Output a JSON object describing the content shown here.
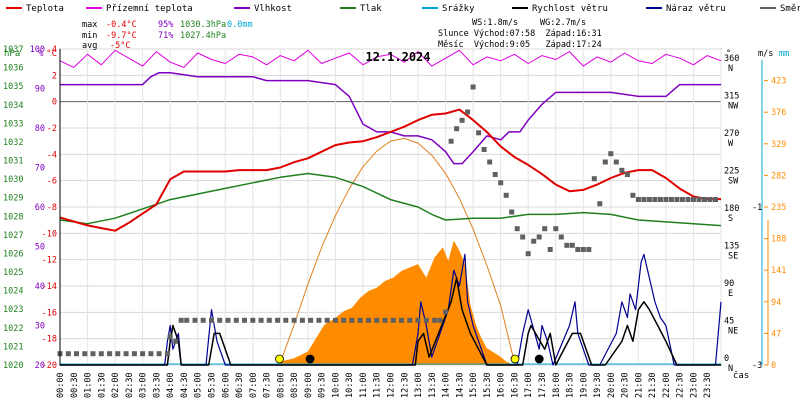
{
  "legend": [
    {
      "label": "Teplota",
      "color": "#e00000"
    },
    {
      "label": "Přízemní teplota",
      "color": "#e000e0"
    },
    {
      "label": "Vlhkost",
      "color": "#8000c0"
    },
    {
      "label": "Tlak",
      "color": "#208020"
    },
    {
      "label": "Srážky",
      "color": "#00a8d8"
    },
    {
      "label": "Rychlost větru",
      "color": "#000000"
    },
    {
      "label": "Náraz větru",
      "color": "#000090"
    },
    {
      "label": "Směr větru",
      "color": "#606060"
    }
  ],
  "stats": {
    "max_label": "max",
    "max_temp": "-0.4°C",
    "max_hum": "95%",
    "max_press": "1030.3hPa",
    "max_rain": "0.0mm",
    "min_label": "min",
    "min_temp": "-9.7°C",
    "min_hum": "71%",
    "min_press": "1027.4hPa",
    "avg_label": "avg",
    "avg_temp": "-5°C",
    "ws": "WS:1.8m/s",
    "wg": "WG:2.7m/s",
    "sun": "Slunce Východ:07:58  Západ:16:31",
    "moon": "Měsíc  Východ:9:05   Západ:17:24"
  },
  "colors": {
    "temp": "#e00000",
    "ground": "#e000e0",
    "hum": "#8000c0",
    "press": "#208020",
    "rain": "#00a8d8",
    "wind": "#000000",
    "gust": "#000090",
    "dir": "#606060",
    "solar": "#ff8c00",
    "sunline": "#e08020",
    "pressAxis": "#208020",
    "solarAxis": "#ff8c00"
  },
  "chart_data": {
    "type": "line",
    "title": "12.1.2024",
    "x_axis_label": "čas",
    "x_ticks": [
      "00:00",
      "00:30",
      "01:00",
      "01:30",
      "02:00",
      "02:30",
      "03:00",
      "03:30",
      "04:00",
      "04:30",
      "05:00",
      "05:30",
      "06:00",
      "06:30",
      "07:00",
      "07:30",
      "08:00",
      "08:30",
      "09:00",
      "09:30",
      "10:00",
      "10:30",
      "11:00",
      "11:30",
      "12:00",
      "12:30",
      "13:00",
      "13:30",
      "14:00",
      "14:30",
      "15:00",
      "15:30",
      "16:00",
      "16:30",
      "17:00",
      "17:30",
      "18:00",
      "18:30",
      "19:00",
      "19:30",
      "20:00",
      "20:30",
      "21:00",
      "21:30",
      "22:00",
      "22:30",
      "23:00",
      "23:30"
    ],
    "axes": {
      "pressure": {
        "label": "hPa",
        "range": [
          1020,
          1037
        ],
        "ticks": [
          1020,
          1021,
          1022,
          1023,
          1024,
          1025,
          1026,
          1027,
          1028,
          1029,
          1030,
          1031,
          1032,
          1033,
          1034,
          1035,
          1036,
          1037
        ]
      },
      "humidity": {
        "label": "%",
        "range": [
          20,
          100
        ],
        "ticks": [
          20,
          30,
          40,
          50,
          60,
          70,
          80,
          90,
          100
        ]
      },
      "temperature": {
        "label": "°C",
        "range": [
          -20,
          4
        ],
        "ticks": [
          -20,
          -18,
          -16,
          -14,
          -12,
          -10,
          -8,
          -6,
          -4,
          -2,
          0,
          2,
          4
        ]
      },
      "direction": {
        "label": "°",
        "ticks": [
          {
            "v": 0,
            "deg": "0",
            "dir": "N"
          },
          {
            "v": 45,
            "deg": "45",
            "dir": "NE"
          },
          {
            "v": 90,
            "deg": "90",
            "dir": "E"
          },
          {
            "v": 135,
            "deg": "135",
            "dir": "SE"
          },
          {
            "v": 180,
            "deg": "180",
            "dir": "S"
          },
          {
            "v": 225,
            "deg": "225",
            "dir": "SW"
          },
          {
            "v": 270,
            "deg": "270",
            "dir": "W"
          },
          {
            "v": 315,
            "deg": "315",
            "dir": "NW"
          },
          {
            "v": 360,
            "deg": "360",
            "dir": "N"
          }
        ]
      },
      "wind": {
        "label": "m/s",
        "range": [
          -3,
          1
        ],
        "ticks": [
          -3,
          -1
        ]
      },
      "rain": {
        "label": "mm"
      },
      "solar": {
        "range": [
          0,
          470
        ],
        "ticks": [
          0,
          47,
          94,
          141,
          188,
          235,
          282,
          329,
          376,
          423
        ]
      }
    },
    "series": [
      {
        "name": "Teplota",
        "axis": "temperature",
        "x": [
          0,
          0.5,
          1,
          1.5,
          2,
          2.5,
          3,
          3.5,
          4,
          4.5,
          5,
          5.5,
          6,
          6.5,
          7,
          7.5,
          8,
          8.5,
          9,
          9.5,
          10,
          10.5,
          11,
          11.5,
          12,
          12.5,
          13,
          13.5,
          14,
          14.5,
          15,
          15.5,
          16,
          16.5,
          17,
          17.5,
          18,
          18.5,
          19,
          19.5,
          20,
          20.5,
          21,
          21.5,
          22,
          22.5,
          23,
          23.5,
          24
        ],
        "y": [
          -8.8,
          -9.1,
          -9.4,
          -9.6,
          -9.8,
          -9.2,
          -8.5,
          -7.8,
          -5.9,
          -5.3,
          -5.3,
          -5.3,
          -5.3,
          -5.2,
          -5.2,
          -5.2,
          -5.0,
          -4.6,
          -4.3,
          -3.8,
          -3.3,
          -3.1,
          -3.0,
          -2.7,
          -2.3,
          -1.9,
          -1.4,
          -1.0,
          -0.9,
          -0.6,
          -1.4,
          -2.3,
          -3.4,
          -4.2,
          -4.8,
          -5.5,
          -6.3,
          -6.8,
          -6.7,
          -6.3,
          -5.8,
          -5.4,
          -5.2,
          -5.2,
          -5.8,
          -6.6,
          -7.2,
          -7.4,
          -7.4
        ]
      },
      {
        "name": "Přízemní teplota",
        "axis": "temperature",
        "x": [
          0,
          0.5,
          1,
          1.5,
          2,
          2.5,
          3,
          3.5,
          4,
          4.5,
          5,
          5.5,
          6,
          6.5,
          7,
          7.5,
          8,
          8.5,
          9,
          9.5,
          10,
          10.5,
          11,
          11.5,
          12,
          12.5,
          13,
          13.5,
          14,
          14.5,
          15,
          15.5,
          16,
          16.5,
          17,
          17.5,
          18,
          18.5,
          19,
          19.5,
          20,
          20.5,
          21,
          21.5,
          22,
          22.5,
          23,
          23.5,
          24
        ],
        "y": [
          3.1,
          2.6,
          3.6,
          2.8,
          3.9,
          3.3,
          2.7,
          3.8,
          3.0,
          2.6,
          3.7,
          3.2,
          2.9,
          3.6,
          3.4,
          2.8,
          3.5,
          3.1,
          3.9,
          2.9,
          3.3,
          3.7,
          2.8,
          3.4,
          3.6,
          3.0,
          3.8,
          2.7,
          3.3,
          3.9,
          2.8,
          3.4,
          3.1,
          3.6,
          2.9,
          3.5,
          3.2,
          3.8,
          2.7,
          3.4,
          3.0,
          3.7,
          3.1,
          2.9,
          3.6,
          3.3,
          2.8,
          3.5,
          3.1
        ]
      },
      {
        "name": "Vlhkost",
        "axis": "humidity",
        "x": [
          0,
          1,
          2,
          3,
          3.3,
          3.6,
          4,
          5,
          6,
          7,
          7.5,
          8,
          9,
          10,
          10.5,
          11,
          11.5,
          12,
          12.5,
          13,
          13.5,
          14,
          14.3,
          14.6,
          15,
          15.5,
          16,
          16.3,
          16.7,
          17,
          17.5,
          18,
          19,
          20,
          21,
          22,
          22.5,
          23,
          24
        ],
        "y": [
          91,
          91,
          91,
          91,
          93,
          94,
          94,
          93,
          93,
          93,
          92,
          92,
          92,
          91,
          88,
          81,
          79,
          79,
          78,
          78,
          77,
          74,
          71,
          71,
          74,
          78,
          77,
          79,
          79,
          82,
          86,
          89,
          89,
          89,
          88,
          88,
          91,
          91,
          91
        ]
      },
      {
        "name": "Tlak",
        "axis": "pressure",
        "x": [
          0,
          1,
          2,
          3,
          4,
          5,
          6,
          7,
          8,
          9,
          10,
          11,
          12,
          13,
          13.5,
          14,
          15,
          16,
          17,
          18,
          19,
          20,
          21,
          22,
          23,
          24
        ],
        "y": [
          1027.8,
          1027.6,
          1027.9,
          1028.4,
          1028.9,
          1029.2,
          1029.5,
          1029.8,
          1030.1,
          1030.3,
          1030.1,
          1029.6,
          1028.9,
          1028.5,
          1028.1,
          1027.8,
          1027.9,
          1027.9,
          1028.1,
          1028.1,
          1028.2,
          1028.1,
          1027.8,
          1027.7,
          1027.6,
          1027.5
        ]
      },
      {
        "name": "Rychlost větru",
        "axis": "wind",
        "x": [
          0,
          3.9,
          4.0,
          4.1,
          4.3,
          4.4,
          5.4,
          5.6,
          5.8,
          6.2,
          12.9,
          13.0,
          13.2,
          13.4,
          14.2,
          14.4,
          14.6,
          14.9,
          15.2,
          15.5,
          15.8,
          16.0,
          16.8,
          17.0,
          17.1,
          17.6,
          17.8,
          18.0,
          18.6,
          18.9,
          19.3,
          19.8,
          20.4,
          20.6,
          20.8,
          21.0,
          21.2,
          21.4,
          21.7,
          22.0,
          22.4,
          24
        ],
        "y": [
          -3,
          -3,
          -2.7,
          -2.5,
          -2.7,
          -3,
          -3,
          -2.6,
          -2.6,
          -3,
          -3,
          -2.7,
          -2.6,
          -2.9,
          -2.2,
          -1.9,
          -2.3,
          -2.6,
          -2.8,
          -3,
          -3,
          -3,
          -3,
          -2.6,
          -2.5,
          -2.8,
          -2.6,
          -3,
          -2.6,
          -2.6,
          -3,
          -3,
          -2.7,
          -2.5,
          -2.7,
          -2.3,
          -2.2,
          -2.3,
          -2.5,
          -2.7,
          -3,
          -3
        ]
      },
      {
        "name": "Náraz větru",
        "axis": "wind",
        "x": [
          0,
          3.8,
          3.9,
          4.0,
          4.1,
          4.3,
          4.4,
          5.3,
          5.5,
          5.7,
          6.0,
          12.8,
          13.0,
          13.1,
          13.3,
          13.5,
          14.1,
          14.3,
          14.5,
          14.7,
          14.8,
          15.0,
          15.2,
          15.5,
          16.0,
          16.6,
          16.8,
          17.0,
          17.4,
          17.5,
          17.7,
          17.9,
          18.5,
          18.7,
          18.8,
          19.2,
          19.6,
          20.2,
          20.4,
          20.6,
          20.7,
          20.9,
          21.1,
          21.2,
          21.4,
          21.6,
          21.8,
          22.0,
          22.3,
          23.8,
          24
        ],
        "y": [
          -3,
          -3,
          -2.7,
          -2.5,
          -2.8,
          -2.6,
          -3,
          -3,
          -2.3,
          -2.7,
          -3,
          -3,
          -2.6,
          -2.2,
          -2.5,
          -2.9,
          -2.3,
          -1.8,
          -2.0,
          -1.6,
          -2.2,
          -2.5,
          -2.7,
          -3,
          -3,
          -3,
          -2.6,
          -2.3,
          -2.8,
          -2.5,
          -2.7,
          -3,
          -2.5,
          -2.2,
          -2.6,
          -3,
          -3,
          -2.6,
          -2.2,
          -2.4,
          -2.1,
          -2.3,
          -1.7,
          -1.6,
          -1.9,
          -2.2,
          -2.4,
          -2.5,
          -3,
          -3,
          -2.2
        ]
      },
      {
        "name": "Směr větru",
        "axis": "direction",
        "x": [
          0,
          0.3,
          0.6,
          0.9,
          1.2,
          1.5,
          1.8,
          2.1,
          2.4,
          2.7,
          3.0,
          3.3,
          3.6,
          3.9,
          4.0,
          4.2,
          4.4,
          4.6,
          4.9,
          5.2,
          5.5,
          5.8,
          6.1,
          6.4,
          6.7,
          7.0,
          7.3,
          7.6,
          7.9,
          8.2,
          8.5,
          8.8,
          9.1,
          9.4,
          9.7,
          10.0,
          10.3,
          10.6,
          10.9,
          11.2,
          11.5,
          11.8,
          12.1,
          12.4,
          12.7,
          13.0,
          13.3,
          13.6,
          13.8,
          14.0,
          14.2,
          14.4,
          14.6,
          14.8,
          15.0,
          15.2,
          15.4,
          15.6,
          15.8,
          16.0,
          16.2,
          16.4,
          16.6,
          16.8,
          17.0,
          17.2,
          17.4,
          17.6,
          17.8,
          18.0,
          18.2,
          18.4,
          18.6,
          18.8,
          19.0,
          19.2,
          19.4,
          19.6,
          19.8,
          20.0,
          20.2,
          20.4,
          20.6,
          20.8,
          21.0,
          21.2,
          21.4,
          21.6,
          21.8,
          22.0,
          22.2,
          22.4,
          22.6,
          22.8,
          23.0,
          23.2,
          23.4,
          23.6,
          23.8
        ],
        "y": [
          10,
          10,
          10,
          10,
          10,
          10,
          10,
          10,
          10,
          10,
          10,
          10,
          10,
          10,
          30,
          25,
          50,
          50,
          50,
          50,
          50,
          50,
          50,
          50,
          50,
          50,
          50,
          50,
          50,
          50,
          50,
          50,
          50,
          50,
          50,
          50,
          50,
          50,
          50,
          50,
          50,
          50,
          50,
          50,
          50,
          50,
          50,
          50,
          50,
          60,
          265,
          280,
          290,
          300,
          330,
          275,
          255,
          240,
          225,
          215,
          200,
          180,
          160,
          150,
          130,
          145,
          150,
          160,
          135,
          160,
          150,
          140,
          140,
          135,
          135,
          135,
          220,
          190,
          240,
          250,
          240,
          230,
          225,
          200,
          195,
          195,
          195,
          195,
          195,
          195,
          195,
          195,
          195,
          195,
          195,
          195,
          195,
          195,
          195
        ]
      },
      {
        "name": "Srážky",
        "axis": "rain",
        "x": [
          0,
          24
        ],
        "y": [
          0,
          0
        ]
      },
      {
        "name": "solar",
        "axis": "solar",
        "x": [
          8.0,
          8.5,
          9.0,
          9.3,
          9.6,
          10.0,
          10.3,
          10.6,
          10.9,
          11.2,
          11.5,
          11.8,
          12.1,
          12.4,
          12.7,
          13.0,
          13.3,
          13.6,
          13.9,
          14.1,
          14.3,
          14.5,
          14.7,
          14.9,
          15.1,
          15.3,
          15.5,
          15.7,
          16.0,
          16.2,
          16.4
        ],
        "y": [
          5,
          10,
          20,
          40,
          60,
          70,
          80,
          85,
          100,
          110,
          115,
          125,
          130,
          140,
          145,
          150,
          130,
          160,
          175,
          155,
          185,
          170,
          150,
          90,
          60,
          40,
          25,
          20,
          12,
          5,
          2
        ]
      },
      {
        "name": "sun",
        "axis": "solar",
        "x": [
          7.97,
          8.5,
          9,
          9.5,
          10,
          10.5,
          11,
          11.5,
          12,
          12.5,
          13,
          13.5,
          14,
          14.5,
          15,
          15.5,
          16,
          16.52
        ],
        "y": [
          0,
          60,
          120,
          175,
          222,
          262,
          295,
          318,
          333,
          337,
          330,
          312,
          285,
          248,
          202,
          148,
          88,
          0
        ]
      }
    ],
    "markers": [
      {
        "name": "sunrise",
        "time": "07:58",
        "x": 7.97
      },
      {
        "name": "sunset",
        "time": "16:31",
        "x": 16.52
      },
      {
        "name": "moonrise",
        "time": "9:05",
        "x": 9.08
      },
      {
        "name": "moonset",
        "time": "17:24",
        "x": 17.4
      }
    ]
  }
}
